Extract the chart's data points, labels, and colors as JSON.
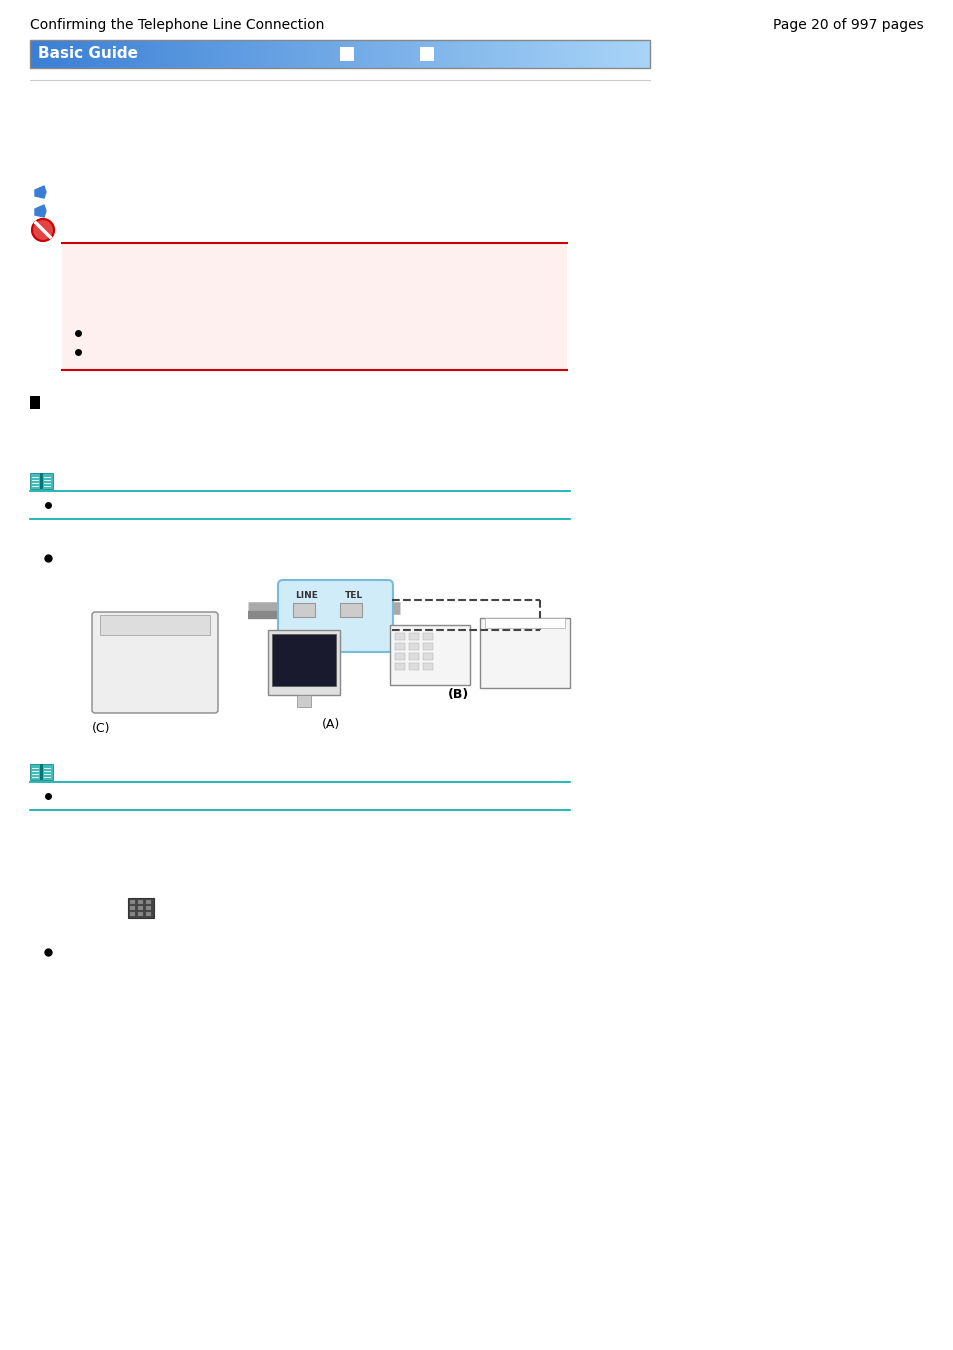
{
  "page_title_left": "Confirming the Telephone Line Connection",
  "page_title_right": "Page 20 of 997 pages",
  "header_bar_text": "Basic Guide",
  "header_bar_color_left": "#3a7fd5",
  "header_bar_color_right": "#a8d4f7",
  "header_bar_border": "#888888",
  "divider_color_top": "#cccccc",
  "warning_box_bg": "#fff0f0",
  "warning_box_border": "#cc0000",
  "note_line_color": "#00aaaa",
  "bg_color": "#ffffff"
}
